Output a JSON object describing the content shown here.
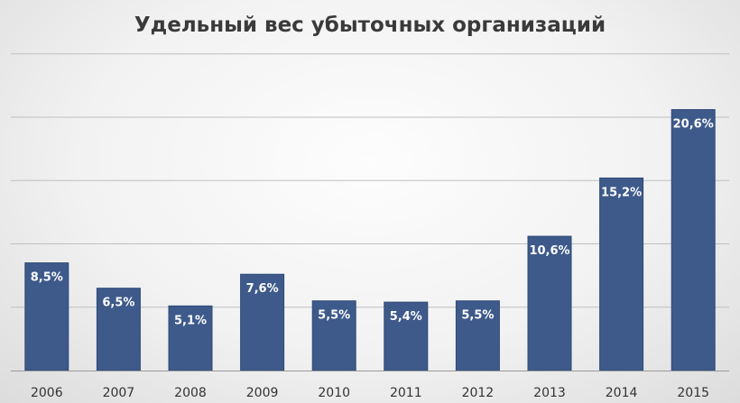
{
  "chart_data": {
    "type": "bar",
    "title": "Удельный вес убыточных организаций",
    "categories": [
      "2006",
      "2007",
      "2008",
      "2009",
      "2010",
      "2011",
      "2012",
      "2013",
      "2014",
      "2015"
    ],
    "values": [
      8.5,
      6.5,
      5.1,
      7.6,
      5.5,
      5.4,
      5.5,
      10.6,
      15.2,
      20.6
    ],
    "data_labels": [
      "8,5%",
      "6,5%",
      "5,1%",
      "7,6%",
      "5,5%",
      "5,4%",
      "5,5%",
      "10,6%",
      "15,2%",
      "20,6%"
    ],
    "xlabel": "",
    "ylabel": "",
    "ylim": [
      0,
      25
    ],
    "y_gridlines": [
      5,
      10,
      15,
      20,
      25
    ],
    "y_tick_labels_shown": false,
    "grid": true,
    "legend": "none",
    "colors": {
      "bar": "#3e5a8a",
      "bar_edge": "#2f4a78",
      "grid": "#bfbfbf",
      "data_label": "#ffffff"
    }
  }
}
